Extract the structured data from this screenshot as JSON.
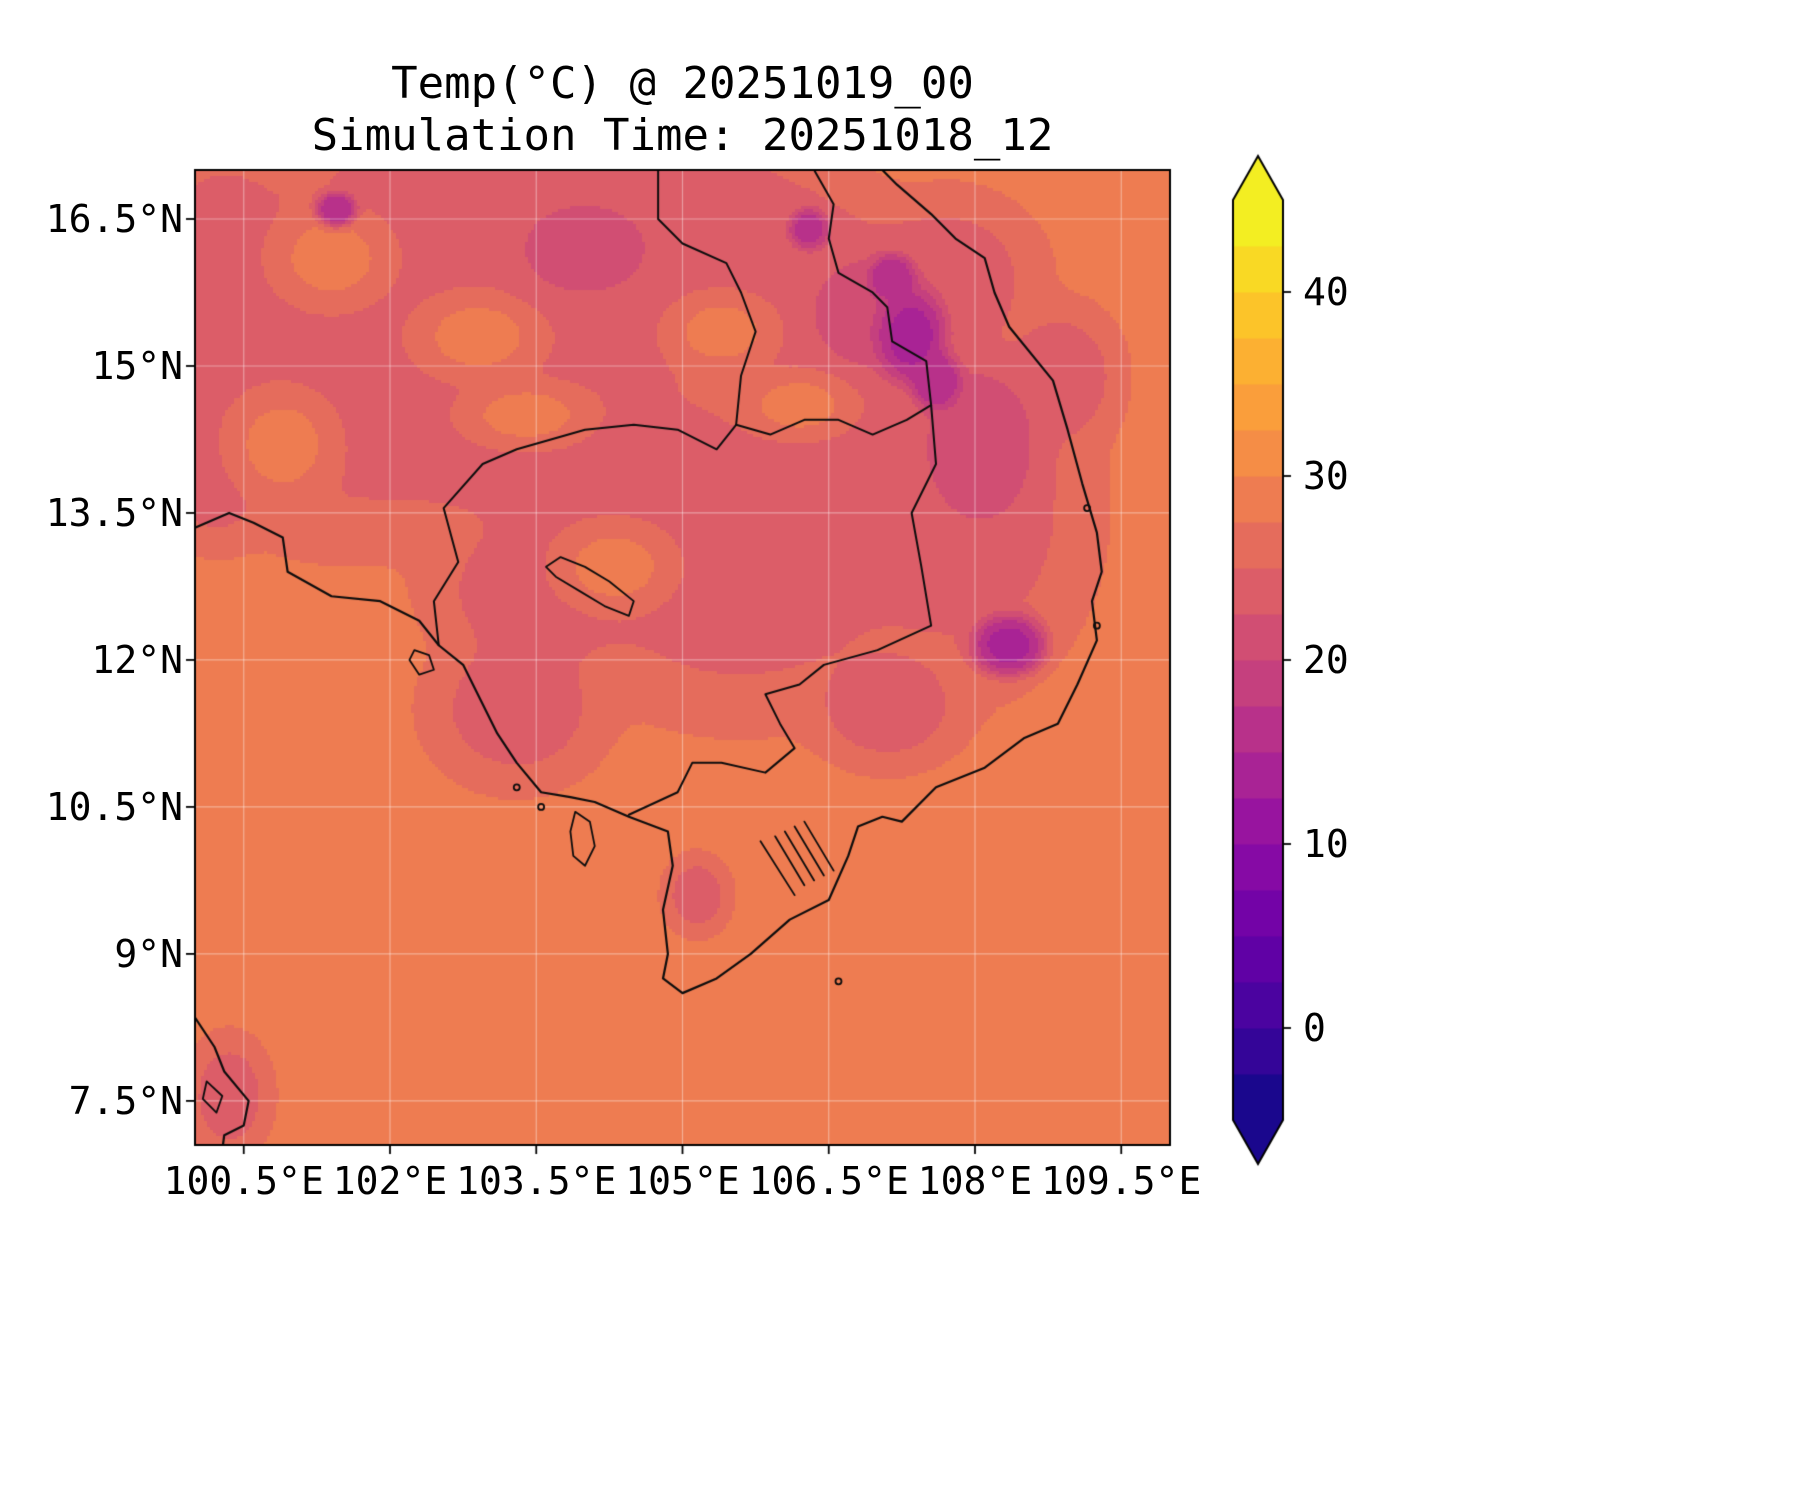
{
  "chart_data": {
    "type": "heatmap",
    "title": "Temp(°C) @ 20251019_00",
    "subtitle": "Simulation Time: 20251018_12",
    "xlabel": "",
    "ylabel": "",
    "x_axis": {
      "range": [
        100.0,
        110.0
      ],
      "tick_values": [
        100.5,
        102,
        103.5,
        105,
        106.5,
        108,
        109.5
      ],
      "tick_labels": [
        "100.5°E",
        "102°E",
        "103.5°E",
        "105°E",
        "106.5°E",
        "108°E",
        "109.5°E"
      ]
    },
    "y_axis": {
      "range": [
        7.05,
        17.0
      ],
      "tick_values": [
        16.5,
        15,
        13.5,
        12,
        10.5,
        9,
        7.5
      ],
      "tick_labels": [
        "16.5°N",
        "15°N",
        "13.5°N",
        "12°N",
        "10.5°N",
        "9°N",
        "7.5°N"
      ]
    },
    "colorbar": {
      "vmin": -5,
      "vmax": 45,
      "step": 2.5,
      "extend": "both",
      "colormap": "plasma",
      "tick_values": [
        0,
        10,
        20,
        30,
        40
      ],
      "tick_labels": [
        "0",
        "10",
        "20",
        "30",
        "40"
      ],
      "colors": [
        "#0d0887",
        "#41049d",
        "#6a00a8",
        "#8f0da4",
        "#b12a90",
        "#cc4778",
        "#e16462",
        "#f2844b",
        "#fca636",
        "#fcce25",
        "#f0f921"
      ]
    },
    "field": {
      "unit": "°C",
      "base_temp": 28,
      "blobs": [
        [
          103.8,
          15.9,
          2.3,
          1.3,
          24
        ],
        [
          101.7,
          14.8,
          1.7,
          1.3,
          24
        ],
        [
          100.3,
          15.9,
          0.8,
          1.2,
          24
        ],
        [
          102.6,
          16.7,
          1.3,
          0.7,
          24
        ],
        [
          105.9,
          16.0,
          1.1,
          0.9,
          24
        ],
        [
          105.0,
          16.7,
          0.8,
          0.5,
          24
        ],
        [
          104.1,
          14.0,
          1.6,
          0.7,
          24
        ],
        [
          105.6,
          12.9,
          1.6,
          1.2,
          24
        ],
        [
          106.45,
          13.9,
          0.9,
          0.6,
          24
        ],
        [
          103.5,
          12.7,
          0.9,
          0.7,
          24
        ],
        [
          103.3,
          11.5,
          0.75,
          0.65,
          24
        ],
        [
          107.9,
          13.6,
          1.05,
          1.5,
          24
        ],
        [
          106.8,
          15.2,
          1.0,
          0.9,
          24
        ],
        [
          107.7,
          15.9,
          0.8,
          0.7,
          24
        ],
        [
          107.1,
          11.5,
          0.65,
          0.5,
          24
        ],
        [
          100.2,
          13.9,
          0.45,
          0.6,
          24
        ],
        [
          105.15,
          9.6,
          0.28,
          0.33,
          24
        ],
        [
          100.35,
          7.55,
          0.35,
          0.5,
          24
        ],
        [
          108.9,
          14.9,
          0.5,
          0.6,
          24
        ],
        [
          101.4,
          16.1,
          0.55,
          0.45,
          28
        ],
        [
          102.9,
          15.3,
          0.6,
          0.4,
          28
        ],
        [
          104.3,
          12.95,
          0.55,
          0.4,
          28
        ],
        [
          105.4,
          15.35,
          0.5,
          0.35,
          28
        ],
        [
          100.9,
          14.2,
          0.5,
          0.5,
          28
        ],
        [
          103.4,
          14.5,
          0.6,
          0.3,
          28
        ],
        [
          106.2,
          14.6,
          0.5,
          0.3,
          28
        ],
        [
          106.95,
          15.55,
          0.55,
          0.5,
          21
        ],
        [
          108.05,
          14.2,
          0.5,
          0.7,
          21
        ],
        [
          104.0,
          16.2,
          0.7,
          0.5,
          22
        ],
        [
          107.35,
          15.3,
          0.3,
          0.4,
          14
        ],
        [
          107.6,
          14.85,
          0.22,
          0.25,
          15
        ],
        [
          108.35,
          12.15,
          0.33,
          0.27,
          14
        ],
        [
          101.45,
          16.6,
          0.18,
          0.15,
          15
        ],
        [
          106.3,
          16.4,
          0.18,
          0.18,
          16
        ],
        [
          107.15,
          15.9,
          0.2,
          0.2,
          15
        ]
      ]
    },
    "overlays": {
      "coastlines": [
        [
          [
            100.0,
            13.35
          ],
          [
            100.35,
            13.5
          ],
          [
            100.6,
            13.4
          ],
          [
            100.9,
            13.25
          ],
          [
            100.95,
            12.9
          ],
          [
            101.4,
            12.65
          ],
          [
            101.9,
            12.6
          ],
          [
            102.3,
            12.4
          ],
          [
            102.5,
            12.15
          ],
          [
            102.75,
            11.95
          ],
          [
            102.9,
            11.65
          ],
          [
            103.1,
            11.25
          ],
          [
            103.3,
            10.95
          ],
          [
            103.55,
            10.65
          ],
          [
            103.85,
            10.6
          ],
          [
            104.1,
            10.55
          ],
          [
            104.45,
            10.4
          ],
          [
            104.85,
            10.25
          ],
          [
            104.9,
            9.9
          ],
          [
            104.8,
            9.45
          ],
          [
            104.85,
            9.0
          ],
          [
            104.8,
            8.75
          ],
          [
            105.0,
            8.6
          ],
          [
            105.35,
            8.75
          ],
          [
            105.7,
            9.0
          ],
          [
            106.1,
            9.35
          ],
          [
            106.5,
            9.55
          ],
          [
            106.7,
            10.0
          ],
          [
            106.8,
            10.3
          ],
          [
            107.05,
            10.4
          ],
          [
            107.25,
            10.35
          ],
          [
            107.6,
            10.7
          ],
          [
            108.1,
            10.9
          ],
          [
            108.5,
            11.2
          ],
          [
            108.85,
            11.35
          ],
          [
            109.05,
            11.75
          ],
          [
            109.25,
            12.2
          ],
          [
            109.2,
            12.6
          ],
          [
            109.3,
            12.9
          ],
          [
            109.25,
            13.3
          ],
          [
            109.1,
            13.8
          ],
          [
            108.95,
            14.35
          ],
          [
            108.8,
            14.85
          ],
          [
            108.35,
            15.4
          ],
          [
            108.2,
            15.75
          ],
          [
            108.1,
            16.1
          ],
          [
            107.8,
            16.3
          ],
          [
            107.55,
            16.55
          ],
          [
            107.2,
            16.85
          ],
          [
            107.05,
            17.0
          ]
        ],
        [
          [
            100.0,
            8.35
          ],
          [
            100.2,
            8.05
          ],
          [
            100.3,
            7.8
          ],
          [
            100.55,
            7.5
          ],
          [
            100.5,
            7.25
          ],
          [
            100.3,
            7.15
          ],
          [
            100.28,
            7.0
          ]
        ]
      ],
      "borders": [
        [
          [
            102.5,
            12.15
          ],
          [
            102.45,
            12.6
          ],
          [
            102.7,
            13.0
          ],
          [
            102.55,
            13.55
          ],
          [
            102.95,
            14.0
          ],
          [
            103.3,
            14.15
          ],
          [
            104.0,
            14.35
          ],
          [
            104.5,
            14.4
          ],
          [
            104.95,
            14.35
          ],
          [
            105.35,
            14.15
          ],
          [
            105.55,
            14.4
          ]
        ],
        [
          [
            105.55,
            14.4
          ],
          [
            105.9,
            14.3
          ],
          [
            106.25,
            14.45
          ],
          [
            106.6,
            14.45
          ],
          [
            106.95,
            14.3
          ],
          [
            107.3,
            14.45
          ],
          [
            107.55,
            14.6
          ]
        ],
        [
          [
            105.55,
            14.4
          ],
          [
            105.6,
            14.9
          ],
          [
            105.75,
            15.35
          ],
          [
            105.6,
            15.75
          ],
          [
            105.45,
            16.05
          ],
          [
            105.0,
            16.25
          ],
          [
            104.75,
            16.5
          ],
          [
            104.75,
            17.0
          ]
        ],
        [
          [
            107.55,
            14.6
          ],
          [
            107.5,
            15.05
          ],
          [
            107.15,
            15.25
          ],
          [
            107.1,
            15.6
          ],
          [
            106.95,
            15.75
          ],
          [
            106.6,
            15.95
          ],
          [
            106.5,
            16.3
          ],
          [
            106.55,
            16.65
          ],
          [
            106.35,
            17.0
          ]
        ],
        [
          [
            107.55,
            14.6
          ],
          [
            107.6,
            14.0
          ],
          [
            107.35,
            13.5
          ],
          [
            107.45,
            12.95
          ],
          [
            107.55,
            12.35
          ],
          [
            107.0,
            12.1
          ],
          [
            106.45,
            11.95
          ],
          [
            106.2,
            11.75
          ],
          [
            105.85,
            11.65
          ],
          [
            106.0,
            11.35
          ],
          [
            106.15,
            11.1
          ],
          [
            105.85,
            10.85
          ],
          [
            105.4,
            10.95
          ],
          [
            105.1,
            10.95
          ],
          [
            104.95,
            10.65
          ],
          [
            104.45,
            10.42
          ]
        ]
      ],
      "channels": [
        [
          [
            105.8,
            10.15
          ],
          [
            106.15,
            9.6
          ]
        ],
        [
          [
            105.95,
            10.2
          ],
          [
            106.25,
            9.7
          ]
        ],
        [
          [
            106.05,
            10.25
          ],
          [
            106.35,
            9.75
          ]
        ],
        [
          [
            106.15,
            10.3
          ],
          [
            106.45,
            9.8
          ]
        ],
        [
          [
            106.25,
            10.35
          ],
          [
            106.55,
            9.85
          ]
        ]
      ],
      "islands": [
        [
          [
            103.9,
            10.45
          ],
          [
            104.05,
            10.35
          ],
          [
            104.1,
            10.1
          ],
          [
            104.0,
            9.9
          ],
          [
            103.88,
            10.0
          ],
          [
            103.85,
            10.25
          ]
        ],
        [
          [
            102.25,
            12.1
          ],
          [
            102.4,
            12.05
          ],
          [
            102.45,
            11.9
          ],
          [
            102.3,
            11.85
          ],
          [
            102.2,
            12.0
          ]
        ],
        [
          [
            100.12,
            7.7
          ],
          [
            100.28,
            7.55
          ],
          [
            100.22,
            7.38
          ],
          [
            100.08,
            7.52
          ]
        ],
        [
          [
            103.75,
            13.05
          ],
          [
            104.0,
            12.95
          ],
          [
            104.25,
            12.8
          ],
          [
            104.5,
            12.6
          ],
          [
            104.45,
            12.45
          ],
          [
            104.2,
            12.55
          ],
          [
            103.95,
            12.7
          ],
          [
            103.7,
            12.85
          ],
          [
            103.6,
            12.95
          ]
        ]
      ],
      "island_dots": [
        [
          103.55,
          10.5
        ],
        [
          103.3,
          10.7
        ],
        [
          106.6,
          8.72
        ],
        [
          109.25,
          12.35
        ],
        [
          109.15,
          13.55
        ]
      ]
    }
  }
}
